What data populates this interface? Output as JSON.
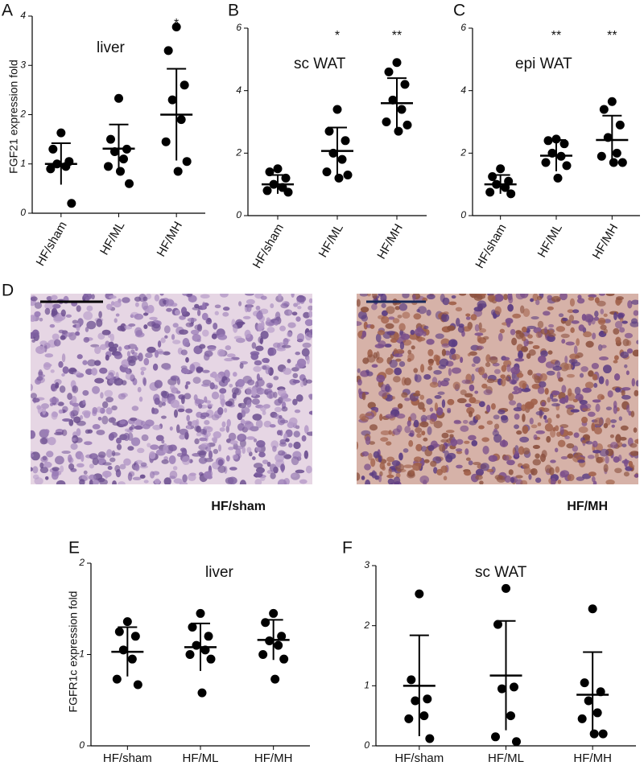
{
  "chart_data": [
    {
      "type": "dot",
      "panel": "A",
      "ylabel": "FGF21 expression fold",
      "note": "liver",
      "categories": [
        "HF/sham",
        "HF/ML",
        "HF/MH"
      ],
      "groups": [
        [
          1.63,
          1.3,
          1.05,
          1.0,
          0.95,
          0.9,
          0.2
        ],
        [
          2.33,
          1.5,
          1.3,
          1.25,
          1.1,
          0.95,
          0.6,
          0.85
        ],
        [
          3.78,
          3.3,
          2.6,
          2.3,
          1.9,
          1.45,
          1.05,
          0.85
        ]
      ],
      "means": [
        1.0,
        1.31,
        2.0
      ],
      "sds": [
        0.42,
        0.49,
        0.93
      ],
      "stars": [
        null,
        null,
        "*"
      ],
      "ylim": [
        0,
        4
      ],
      "yticks": [
        0,
        1,
        2,
        3,
        4
      ],
      "color": "#000000",
      "rotate_labels": true
    },
    {
      "type": "dot",
      "panel": "B",
      "note": "sc WAT",
      "categories": [
        "HF/sham",
        "HF/ML",
        "HF/MH"
      ],
      "groups": [
        [
          1.5,
          1.4,
          1.2,
          1.0,
          0.9,
          0.8,
          0.75
        ],
        [
          3.4,
          2.7,
          2.4,
          2.0,
          1.8,
          1.4,
          1.3,
          1.2
        ],
        [
          4.9,
          4.6,
          4.2,
          3.7,
          3.4,
          3.0,
          2.9,
          2.7
        ]
      ],
      "means": [
        1.0,
        2.07,
        3.6
      ],
      "sds": [
        0.3,
        0.75,
        0.8
      ],
      "stars": [
        null,
        "*",
        "**"
      ],
      "ylim": [
        0,
        6
      ],
      "yticks": [
        0,
        2,
        4,
        6
      ],
      "color": "#000000",
      "rotate_labels": true
    },
    {
      "type": "dot",
      "panel": "C",
      "note": "epi WAT",
      "categories": [
        "HF/sham",
        "HF/ML",
        "HF/MH"
      ],
      "groups": [
        [
          1.5,
          1.25,
          1.1,
          1.0,
          0.9,
          0.75,
          0.7
        ],
        [
          2.45,
          2.4,
          2.3,
          2.0,
          1.9,
          1.7,
          1.6,
          1.2
        ],
        [
          3.65,
          3.4,
          2.9,
          2.5,
          2.0,
          1.9,
          1.7,
          1.7
        ]
      ],
      "means": [
        1.0,
        1.92,
        2.42
      ],
      "sds": [
        0.3,
        0.5,
        0.78
      ],
      "stars": [
        null,
        "**",
        "**"
      ],
      "ylim": [
        0,
        6
      ],
      "yticks": [
        0,
        2,
        4,
        6
      ],
      "color": "#000000",
      "rotate_labels": true
    },
    {
      "type": "dot",
      "panel": "E",
      "ylabel": "FGFR1c expression fold",
      "note": "liver",
      "categories": [
        "HF/sham",
        "HF/ML",
        "HF/MH"
      ],
      "groups": [
        [
          1.36,
          1.25,
          1.2,
          1.05,
          0.95,
          0.73,
          0.67
        ],
        [
          1.45,
          1.3,
          1.2,
          1.1,
          1.05,
          1.0,
          0.95,
          0.58
        ],
        [
          1.45,
          1.35,
          1.2,
          1.15,
          1.1,
          1.0,
          0.95,
          0.73
        ]
      ],
      "means": [
        1.03,
        1.08,
        1.16
      ],
      "sds": [
        0.27,
        0.26,
        0.22
      ],
      "stars": [
        null,
        null,
        null
      ],
      "ylim": [
        0,
        2
      ],
      "yticks": [
        0,
        1,
        2
      ],
      "color": "#000000",
      "rotate_labels": false
    },
    {
      "type": "dot",
      "panel": "F",
      "note": "sc WAT",
      "categories": [
        "HF/sham",
        "HF/ML",
        "HF/MH"
      ],
      "groups": [
        [
          2.53,
          1.1,
          0.78,
          0.75,
          0.5,
          0.45,
          0.12
        ],
        [
          2.62,
          2.02,
          0.98,
          0.95,
          0.5,
          0.15,
          0.07
        ],
        [
          2.28,
          1.05,
          0.9,
          0.75,
          0.55,
          0.45,
          0.2,
          0.2
        ]
      ],
      "means": [
        1.0,
        1.17,
        0.85
      ],
      "sds": [
        0.84,
        0.91,
        0.71
      ],
      "stars": [
        null,
        null,
        null
      ],
      "ylim": [
        0,
        3
      ],
      "yticks": [
        0,
        1,
        2,
        3
      ],
      "color": "#000000",
      "rotate_labels": false
    }
  ],
  "histology": {
    "panel": "D",
    "images": [
      "HF/sham",
      "HF/MH"
    ]
  }
}
